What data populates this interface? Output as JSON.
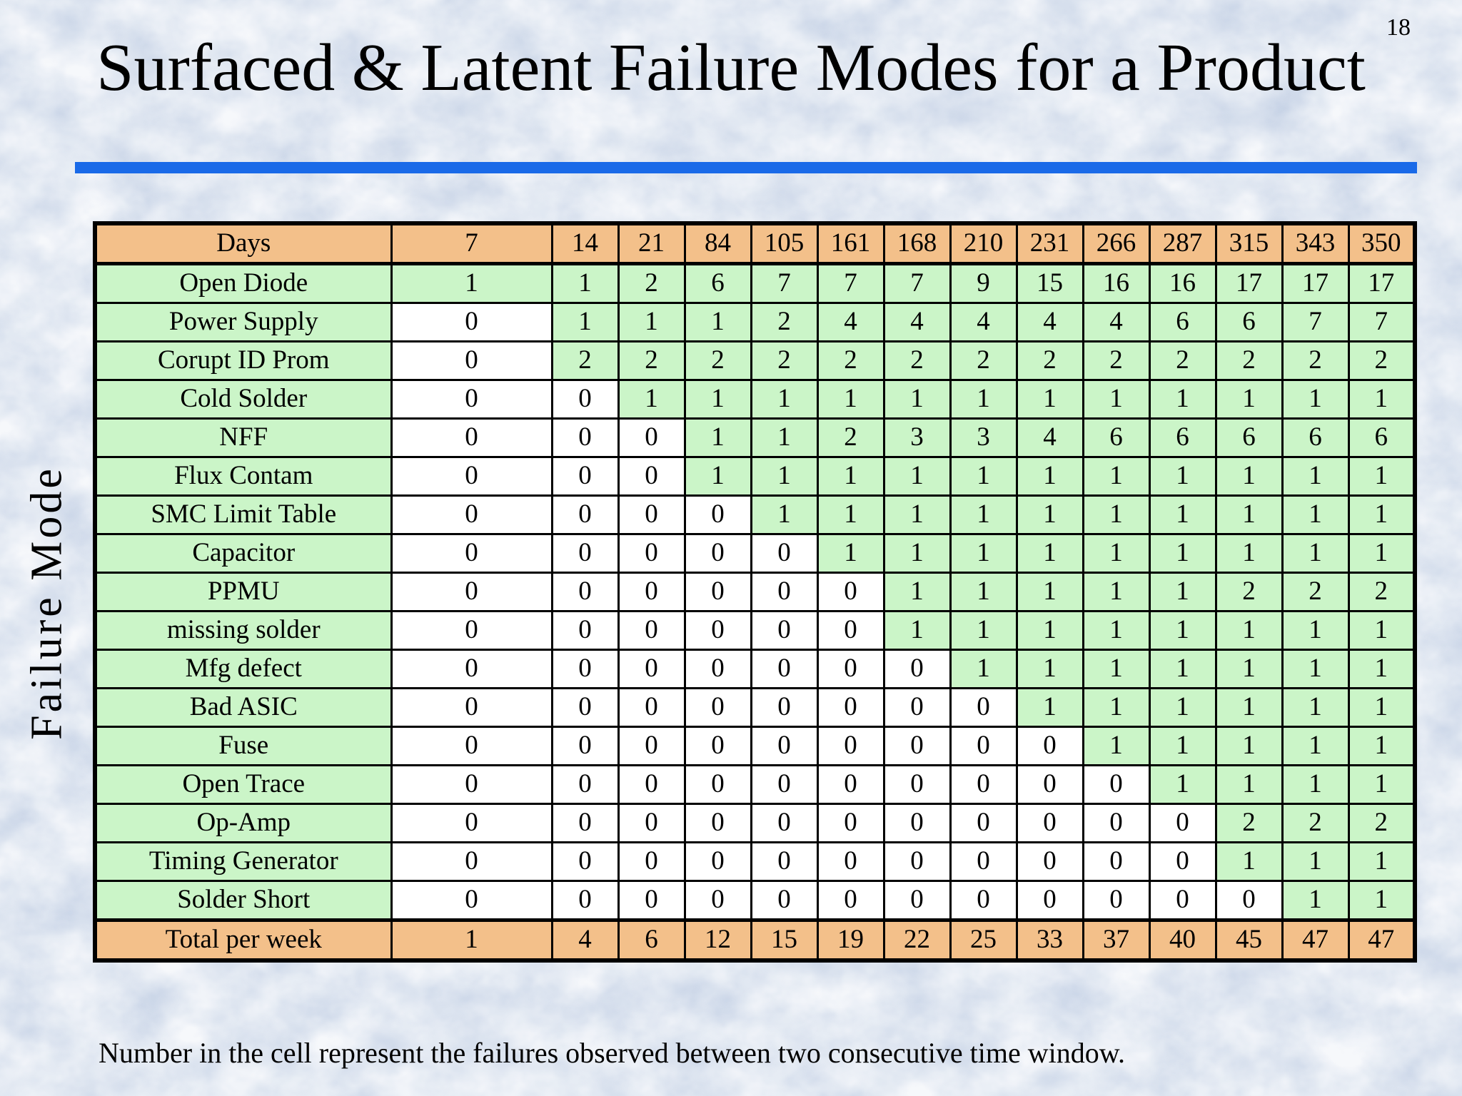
{
  "slide": {
    "page_number": "18",
    "title": "Surfaced & Latent Failure Modes for a Product",
    "side_label": "Failure Mode",
    "footnote": "Number in the cell represent the failures observed between two consecutive time window."
  },
  "chart_data": {
    "type": "table",
    "title": "Surfaced & Latent Failure Modes for a Product",
    "row_axis_label": "Failure Mode",
    "cell_rule": "cell is green once cumulative failures > 0 (surfaced), white while still 0 (latent); header and total rows are orange",
    "header": {
      "label": "Days",
      "days": [
        "7",
        "14",
        "21",
        "84",
        "105",
        "161",
        "168",
        "210",
        "231",
        "266",
        "287",
        "315",
        "343",
        "350"
      ]
    },
    "rows": [
      {
        "label": "Open Diode",
        "values": [
          1,
          1,
          2,
          6,
          7,
          7,
          7,
          9,
          15,
          16,
          16,
          17,
          17,
          17
        ]
      },
      {
        "label": "Power Supply",
        "values": [
          0,
          1,
          1,
          1,
          2,
          4,
          4,
          4,
          4,
          4,
          6,
          6,
          7,
          7
        ]
      },
      {
        "label": "Corupt ID Prom",
        "values": [
          0,
          2,
          2,
          2,
          2,
          2,
          2,
          2,
          2,
          2,
          2,
          2,
          2,
          2
        ]
      },
      {
        "label": "Cold Solder",
        "values": [
          0,
          0,
          1,
          1,
          1,
          1,
          1,
          1,
          1,
          1,
          1,
          1,
          1,
          1
        ]
      },
      {
        "label": "NFF",
        "values": [
          0,
          0,
          0,
          1,
          1,
          2,
          3,
          3,
          4,
          6,
          6,
          6,
          6,
          6
        ]
      },
      {
        "label": "Flux Contam",
        "values": [
          0,
          0,
          0,
          1,
          1,
          1,
          1,
          1,
          1,
          1,
          1,
          1,
          1,
          1
        ]
      },
      {
        "label": "SMC Limit Table",
        "values": [
          0,
          0,
          0,
          0,
          1,
          1,
          1,
          1,
          1,
          1,
          1,
          1,
          1,
          1
        ]
      },
      {
        "label": "Capacitor",
        "values": [
          0,
          0,
          0,
          0,
          0,
          1,
          1,
          1,
          1,
          1,
          1,
          1,
          1,
          1
        ]
      },
      {
        "label": "PPMU",
        "values": [
          0,
          0,
          0,
          0,
          0,
          0,
          1,
          1,
          1,
          1,
          1,
          2,
          2,
          2
        ]
      },
      {
        "label": "missing solder",
        "values": [
          0,
          0,
          0,
          0,
          0,
          0,
          1,
          1,
          1,
          1,
          1,
          1,
          1,
          1
        ]
      },
      {
        "label": "Mfg defect",
        "values": [
          0,
          0,
          0,
          0,
          0,
          0,
          0,
          1,
          1,
          1,
          1,
          1,
          1,
          1
        ]
      },
      {
        "label": "Bad ASIC",
        "values": [
          0,
          0,
          0,
          0,
          0,
          0,
          0,
          0,
          1,
          1,
          1,
          1,
          1,
          1
        ]
      },
      {
        "label": "Fuse",
        "values": [
          0,
          0,
          0,
          0,
          0,
          0,
          0,
          0,
          0,
          1,
          1,
          1,
          1,
          1
        ]
      },
      {
        "label": "Open Trace",
        "values": [
          0,
          0,
          0,
          0,
          0,
          0,
          0,
          0,
          0,
          0,
          1,
          1,
          1,
          1
        ]
      },
      {
        "label": "Op-Amp",
        "values": [
          0,
          0,
          0,
          0,
          0,
          0,
          0,
          0,
          0,
          0,
          0,
          2,
          2,
          2
        ]
      },
      {
        "label": "Timing Generator",
        "values": [
          0,
          0,
          0,
          0,
          0,
          0,
          0,
          0,
          0,
          0,
          0,
          1,
          1,
          1
        ]
      },
      {
        "label": "Solder Short",
        "values": [
          0,
          0,
          0,
          0,
          0,
          0,
          0,
          0,
          0,
          0,
          0,
          0,
          1,
          1
        ]
      }
    ],
    "total_row": {
      "label": "Total per week",
      "values": [
        1,
        4,
        6,
        12,
        15,
        19,
        22,
        25,
        33,
        37,
        40,
        45,
        47,
        47
      ]
    },
    "colors": {
      "header_fill": "#f3c08a",
      "surfaced_fill": "#cbf5c8",
      "latent_fill": "#ffffff",
      "divider_blue": "#1a6ae8",
      "border": "#000000"
    }
  }
}
